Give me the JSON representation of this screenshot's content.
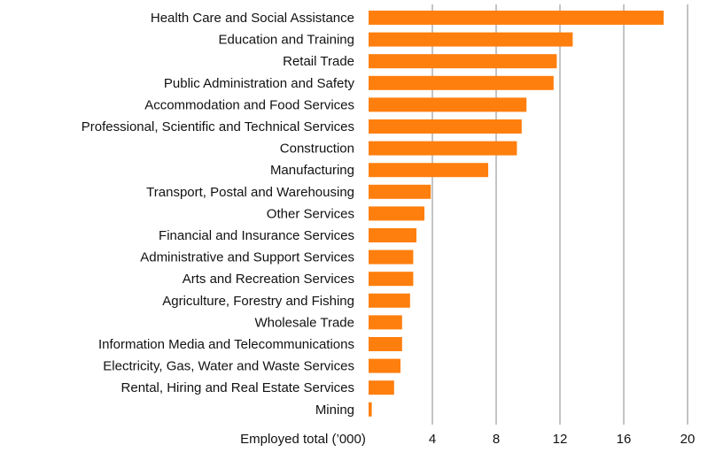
{
  "chart_data": {
    "type": "bar",
    "orientation": "horizontal",
    "categories": [
      "Health Care and Social Assistance",
      "Education and Training",
      "Retail Trade",
      "Public Administration and Safety",
      "Accommodation and Food Services",
      "Professional, Scientific and Technical Services",
      "Construction",
      "Manufacturing",
      "Transport, Postal and Warehousing",
      "Other Services",
      "Financial and Insurance Services",
      "Administrative and Support Services",
      "Arts and Recreation Services",
      "Agriculture, Forestry and Fishing",
      "Wholesale Trade",
      "Information Media and Telecommunications",
      "Electricity, Gas, Water and Waste Services",
      "Rental, Hiring and Real Estate Services",
      "Mining"
    ],
    "values": [
      18.5,
      12.8,
      11.8,
      11.6,
      9.9,
      9.6,
      9.3,
      7.5,
      3.9,
      3.5,
      3.0,
      2.8,
      2.8,
      2.6,
      2.1,
      2.1,
      2.0,
      1.6,
      0.2
    ],
    "xlabel": "Employed total (’000)",
    "ticks": [
      4,
      8,
      12,
      16,
      20
    ],
    "xlim": [
      0,
      20
    ],
    "grid": "vertical",
    "bar_color": "#FF7F0E",
    "grid_color": "#888888"
  }
}
